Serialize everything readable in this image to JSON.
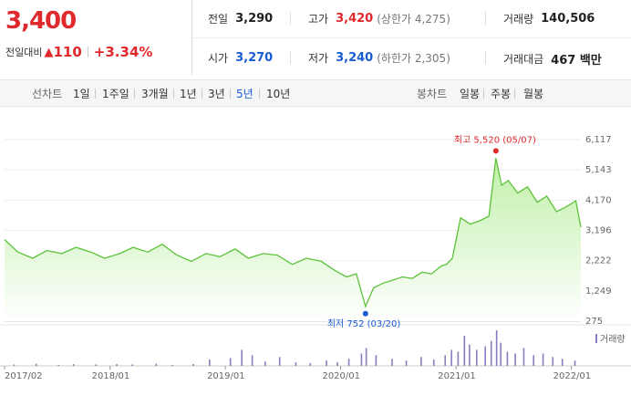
{
  "price": {
    "current": "3,400",
    "change_label": "전일대비",
    "change_arrow": "▲",
    "change_value": "110",
    "change_pct": "+3.34%"
  },
  "info": {
    "prev_label": "전일",
    "prev_value": "3,290",
    "high_label": "고가",
    "high_value": "3,420",
    "upper_limit": "(상한가 4,275)",
    "volume_label": "거래량",
    "volume_value": "140,506",
    "open_label": "시가",
    "open_value": "3,270",
    "low_label": "저가",
    "low_value": "3,240",
    "lower_limit": "(하한가 2,305)",
    "amount_label": "거래대금",
    "amount_value": "467 백만"
  },
  "toolbar": {
    "line_label": "선차트",
    "periods": [
      "1일",
      "1주일",
      "3개월",
      "1년",
      "3년",
      "5년",
      "10년"
    ],
    "active_period": "5년",
    "candle_label": "봉차트",
    "candles": [
      "일봉",
      "주봉",
      "월봉"
    ]
  },
  "chart_data": {
    "type": "area",
    "x_ticks": [
      "2017/02",
      "2018/01",
      "2019/01",
      "2020/01",
      "2021/01",
      "2022/01"
    ],
    "y_ticks": [
      275,
      1249,
      2222,
      3196,
      4170,
      5143,
      6117
    ],
    "ylim": [
      275,
      6117
    ],
    "x_range": [
      "2017-02-01",
      "2022-01-31"
    ],
    "series": [
      {
        "x": [
          "2017-02-01",
          "2017-03-15",
          "2017-05-01",
          "2017-06-15",
          "2017-08-01",
          "2017-09-15",
          "2017-11-01",
          "2017-12-15",
          "2018-02-01",
          "2018-03-15",
          "2018-05-01",
          "2018-06-15",
          "2018-08-01",
          "2018-09-15",
          "2018-11-01",
          "2018-12-15",
          "2019-02-01",
          "2019-03-15",
          "2019-05-01",
          "2019-06-15",
          "2019-08-01",
          "2019-09-15",
          "2019-11-01",
          "2019-12-15",
          "2020-01-20",
          "2020-02-20",
          "2020-03-20",
          "2020-04-15",
          "2020-05-15",
          "2020-06-15",
          "2020-07-15",
          "2020-08-15",
          "2020-09-15",
          "2020-10-15",
          "2020-11-15",
          "2020-12-01",
          "2020-12-20",
          "2021-01-15",
          "2021-02-15",
          "2021-03-15",
          "2021-04-15",
          "2021-05-07",
          "2021-05-25",
          "2021-06-15",
          "2021-07-15",
          "2021-08-15",
          "2021-09-15",
          "2021-10-15",
          "2021-11-15",
          "2021-12-15",
          "2022-01-15",
          "2022-01-31"
        ],
        "values": [
          2900,
          2500,
          2300,
          2550,
          2450,
          2650,
          2500,
          2300,
          2450,
          2650,
          2500,
          2750,
          2400,
          2200,
          2450,
          2350,
          2600,
          2300,
          2450,
          2400,
          2100,
          2300,
          2200,
          1900,
          1700,
          1800,
          752,
          1350,
          1500,
          1600,
          1700,
          1650,
          1850,
          1800,
          2050,
          2100,
          2300,
          3600,
          3400,
          3500,
          3650,
          5520,
          4650,
          4800,
          4400,
          4600,
          4100,
          4300,
          3800,
          3950,
          4150,
          3300
        ]
      }
    ],
    "high_annotation": "최고 5,520 (05/07)",
    "low_annotation": "최저 752 (03/20)",
    "volume_legend": "거래량",
    "volume": {
      "x": [
        "2017-03-01",
        "2017-05-10",
        "2017-07-20",
        "2017-09-05",
        "2017-11-15",
        "2018-01-20",
        "2018-03-10",
        "2018-05-25",
        "2018-07-15",
        "2018-09-20",
        "2018-11-10",
        "2019-01-15",
        "2019-02-20",
        "2019-03-25",
        "2019-05-05",
        "2019-06-20",
        "2019-08-10",
        "2019-09-25",
        "2019-11-15",
        "2019-12-20",
        "2020-01-25",
        "2020-03-05",
        "2020-03-20",
        "2020-04-20",
        "2020-06-10",
        "2020-07-25",
        "2020-09-10",
        "2020-10-20",
        "2020-11-25",
        "2020-12-15",
        "2021-01-05",
        "2021-01-25",
        "2021-02-10",
        "2021-03-05",
        "2021-04-01",
        "2021-04-20",
        "2021-05-07",
        "2021-05-20",
        "2021-06-10",
        "2021-07-05",
        "2021-08-01",
        "2021-09-01",
        "2021-10-01",
        "2021-11-01",
        "2021-12-01",
        "2022-01-10"
      ],
      "values": [
        0.04,
        0.06,
        0.03,
        0.05,
        0.04,
        0.05,
        0.04,
        0.06,
        0.03,
        0.05,
        0.18,
        0.22,
        0.45,
        0.3,
        0.12,
        0.25,
        0.1,
        0.08,
        0.15,
        0.1,
        0.2,
        0.35,
        0.5,
        0.3,
        0.2,
        0.15,
        0.25,
        0.18,
        0.3,
        0.45,
        0.4,
        0.85,
        0.6,
        0.45,
        0.55,
        0.7,
        1.0,
        0.65,
        0.4,
        0.35,
        0.5,
        0.3,
        0.35,
        0.25,
        0.2,
        0.15
      ]
    }
  },
  "colors": {
    "up": "#e0292c",
    "down": "#1a5bd6",
    "line": "#5cc23a",
    "fill": "#bff0a8",
    "volume": "#8a7cc0"
  }
}
